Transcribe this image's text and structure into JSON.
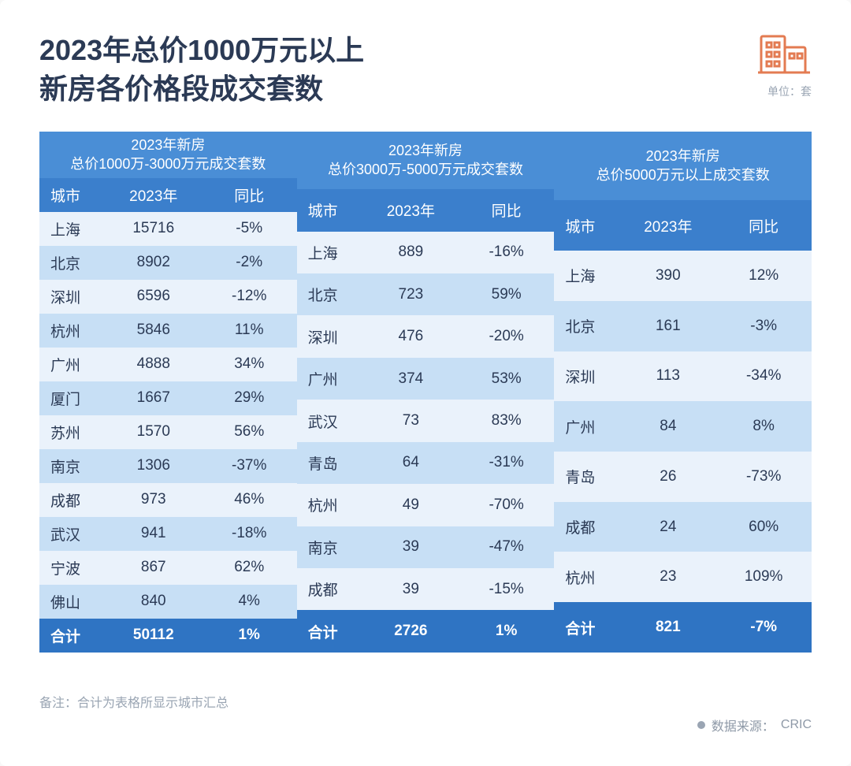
{
  "header": {
    "title_line1": "2023年总价1000万元以上",
    "title_line2": "新房各价格段成交套数",
    "unit": "单位：套",
    "icon_color": "#e37b52"
  },
  "styling": {
    "title_color": "#2b3a55",
    "header_bg_top": "#4a8ed6",
    "header_bg_sub": "#3b7fcc",
    "row_even_bg": "#eaf2fb",
    "row_odd_bg": "#c7dff5",
    "total_row_bg": "#2f74c3",
    "text_color": "#2b3a55",
    "muted_color": "#9aa5b3",
    "page_bg": "#ffffff",
    "title_fontsize": 36,
    "cell_fontsize": 19,
    "col_widths": {
      "city": 90,
      "value": 130,
      "yoy": 130
    }
  },
  "columns": {
    "city": "城市",
    "year": "2023年",
    "yoy": "同比"
  },
  "sections": [
    {
      "group_header_l1": "2023年新房",
      "group_header_l2": "总价1000万-3000万元成交套数",
      "rows": [
        {
          "city": "上海",
          "val": "15716",
          "yoy": "-5%"
        },
        {
          "city": "北京",
          "val": "8902",
          "yoy": "-2%"
        },
        {
          "city": "深圳",
          "val": "6596",
          "yoy": "-12%"
        },
        {
          "city": "杭州",
          "val": "5846",
          "yoy": "11%"
        },
        {
          "city": "广州",
          "val": "4888",
          "yoy": "34%"
        },
        {
          "city": "厦门",
          "val": "1667",
          "yoy": "29%"
        },
        {
          "city": "苏州",
          "val": "1570",
          "yoy": "56%"
        },
        {
          "city": "南京",
          "val": "1306",
          "yoy": "-37%"
        },
        {
          "city": "成都",
          "val": "973",
          "yoy": "46%"
        },
        {
          "city": "武汉",
          "val": "941",
          "yoy": "-18%"
        },
        {
          "city": "宁波",
          "val": "867",
          "yoy": "62%"
        },
        {
          "city": "佛山",
          "val": "840",
          "yoy": "4%"
        }
      ],
      "total": {
        "city": "合计",
        "val": "50112",
        "yoy": "1%"
      }
    },
    {
      "group_header_l1": "2023年新房",
      "group_header_l2": "总价3000万-5000万元成交套数",
      "rows": [
        {
          "city": "上海",
          "val": "889",
          "yoy": "-16%"
        },
        {
          "city": "北京",
          "val": "723",
          "yoy": "59%"
        },
        {
          "city": "深圳",
          "val": "476",
          "yoy": "-20%"
        },
        {
          "city": "广州",
          "val": "374",
          "yoy": "53%"
        },
        {
          "city": "武汉",
          "val": "73",
          "yoy": "83%"
        },
        {
          "city": "青岛",
          "val": "64",
          "yoy": "-31%"
        },
        {
          "city": "杭州",
          "val": "49",
          "yoy": "-70%"
        },
        {
          "city": "南京",
          "val": "39",
          "yoy": "-47%"
        },
        {
          "city": "成都",
          "val": "39",
          "yoy": "-15%"
        }
      ],
      "total": {
        "city": "合计",
        "val": "2726",
        "yoy": "1%"
      }
    },
    {
      "group_header_l1": "2023年新房",
      "group_header_l2": "总价5000万元以上成交套数",
      "rows": [
        {
          "city": "上海",
          "val": "390",
          "yoy": "12%"
        },
        {
          "city": "北京",
          "val": "161",
          "yoy": "-3%"
        },
        {
          "city": "深圳",
          "val": "113",
          "yoy": "-34%"
        },
        {
          "city": "广州",
          "val": "84",
          "yoy": "8%"
        },
        {
          "city": "青岛",
          "val": "26",
          "yoy": "-73%"
        },
        {
          "city": "成都",
          "val": "24",
          "yoy": "60%"
        },
        {
          "city": "杭州",
          "val": "23",
          "yoy": "109%"
        }
      ],
      "total": {
        "city": "合计",
        "val": "821",
        "yoy": "-7%"
      }
    }
  ],
  "footnote": "备注：合计为表格所显示城市汇总",
  "source_label": "数据来源：",
  "source_value": "CRIC"
}
